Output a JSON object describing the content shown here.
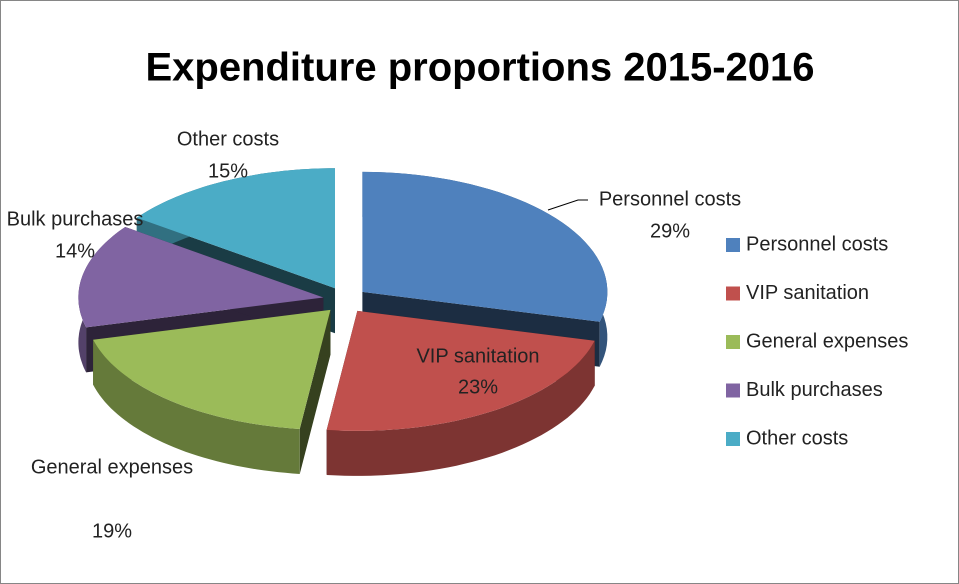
{
  "chart_data": {
    "type": "pie",
    "title": "Expenditure proportions 2015-2016",
    "categories": [
      "Personnel costs",
      "VIP sanitation",
      "General expenses",
      "Bulk purchases",
      "Other costs"
    ],
    "values": [
      29,
      23,
      19,
      14,
      15
    ],
    "value_labels": [
      "29%",
      "23%",
      "19%",
      "14%",
      "15%"
    ],
    "colors": [
      "#4f81bd",
      "#c0504d",
      "#9bbb59",
      "#8064a2",
      "#4bacc6"
    ],
    "legend": "right"
  }
}
